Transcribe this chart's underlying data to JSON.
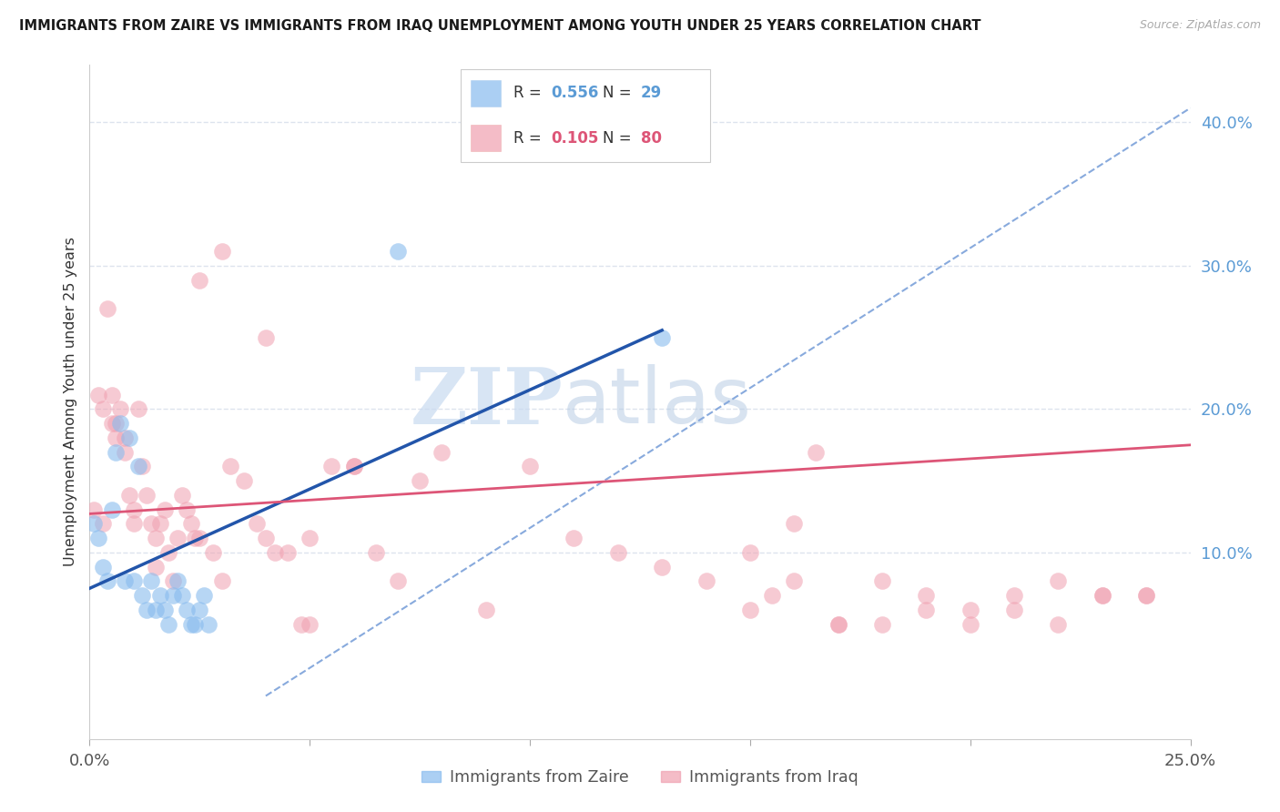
{
  "title": "IMMIGRANTS FROM ZAIRE VS IMMIGRANTS FROM IRAQ UNEMPLOYMENT AMONG YOUTH UNDER 25 YEARS CORRELATION CHART",
  "source": "Source: ZipAtlas.com",
  "ylabel": "Unemployment Among Youth under 25 years",
  "xlim": [
    0.0,
    0.25
  ],
  "ylim": [
    -0.03,
    0.44
  ],
  "right_yticks": [
    0.1,
    0.2,
    0.3,
    0.4
  ],
  "right_yticklabels": [
    "10.0%",
    "20.0%",
    "30.0%",
    "40.0%"
  ],
  "zaire_R": 0.556,
  "zaire_N": 29,
  "iraq_R": 0.105,
  "iraq_N": 80,
  "zaire_color": "#88bbee",
  "iraq_color": "#f0a0b0",
  "zaire_line_color": "#2255aa",
  "iraq_line_color": "#dd5577",
  "diagonal_color": "#88aadd",
  "background_color": "#ffffff",
  "grid_color": "#dde3ee",
  "zaire_x": [
    0.001,
    0.002,
    0.003,
    0.004,
    0.005,
    0.006,
    0.007,
    0.008,
    0.009,
    0.01,
    0.011,
    0.012,
    0.013,
    0.014,
    0.015,
    0.016,
    0.017,
    0.018,
    0.019,
    0.02,
    0.021,
    0.022,
    0.023,
    0.024,
    0.025,
    0.026,
    0.027,
    0.07,
    0.13
  ],
  "zaire_y": [
    0.12,
    0.11,
    0.09,
    0.08,
    0.13,
    0.17,
    0.19,
    0.08,
    0.18,
    0.08,
    0.16,
    0.07,
    0.06,
    0.08,
    0.06,
    0.07,
    0.06,
    0.05,
    0.07,
    0.08,
    0.07,
    0.06,
    0.05,
    0.05,
    0.06,
    0.07,
    0.05,
    0.31,
    0.25
  ],
  "iraq_x": [
    0.001,
    0.002,
    0.003,
    0.003,
    0.004,
    0.005,
    0.005,
    0.006,
    0.006,
    0.007,
    0.008,
    0.008,
    0.009,
    0.01,
    0.01,
    0.011,
    0.012,
    0.013,
    0.014,
    0.015,
    0.015,
    0.016,
    0.017,
    0.018,
    0.019,
    0.02,
    0.021,
    0.022,
    0.023,
    0.024,
    0.025,
    0.028,
    0.03,
    0.032,
    0.035,
    0.038,
    0.04,
    0.042,
    0.045,
    0.048,
    0.05,
    0.055,
    0.06,
    0.065,
    0.07,
    0.075,
    0.08,
    0.09,
    0.1,
    0.11,
    0.12,
    0.13,
    0.14,
    0.15,
    0.155,
    0.16,
    0.165,
    0.17,
    0.18,
    0.19,
    0.2,
    0.21,
    0.22,
    0.23,
    0.24,
    0.15,
    0.16,
    0.17,
    0.18,
    0.19,
    0.2,
    0.21,
    0.22,
    0.23,
    0.24,
    0.025,
    0.03,
    0.04,
    0.05,
    0.06
  ],
  "iraq_y": [
    0.13,
    0.21,
    0.12,
    0.2,
    0.27,
    0.21,
    0.19,
    0.19,
    0.18,
    0.2,
    0.18,
    0.17,
    0.14,
    0.12,
    0.13,
    0.2,
    0.16,
    0.14,
    0.12,
    0.09,
    0.11,
    0.12,
    0.13,
    0.1,
    0.08,
    0.11,
    0.14,
    0.13,
    0.12,
    0.11,
    0.11,
    0.1,
    0.08,
    0.16,
    0.15,
    0.12,
    0.11,
    0.1,
    0.1,
    0.05,
    0.11,
    0.16,
    0.16,
    0.1,
    0.08,
    0.15,
    0.17,
    0.06,
    0.16,
    0.11,
    0.1,
    0.09,
    0.08,
    0.06,
    0.07,
    0.08,
    0.17,
    0.05,
    0.05,
    0.06,
    0.05,
    0.07,
    0.05,
    0.07,
    0.07,
    0.1,
    0.12,
    0.05,
    0.08,
    0.07,
    0.06,
    0.06,
    0.08,
    0.07,
    0.07,
    0.29,
    0.31,
    0.25,
    0.05,
    0.16
  ],
  "zaire_line_x0": 0.0,
  "zaire_line_y0": 0.075,
  "zaire_line_x1": 0.13,
  "zaire_line_y1": 0.255,
  "iraq_line_x0": 0.0,
  "iraq_line_y0": 0.127,
  "iraq_line_x1": 0.25,
  "iraq_line_y1": 0.175
}
